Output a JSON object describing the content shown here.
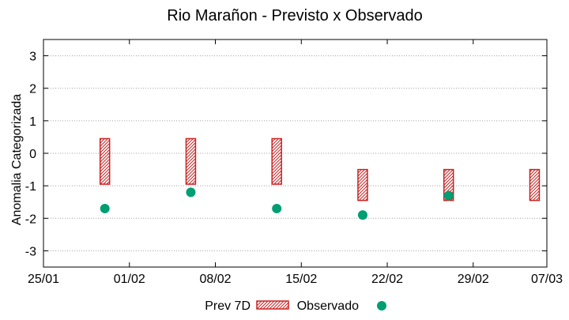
{
  "chart_data": {
    "type": "range-bar-with-points",
    "title": "Rio Marañon - Previsto x Observado",
    "xlabel": "",
    "ylabel": "Anomalia Categorizada",
    "x_axis": {
      "type": "date",
      "range_days": [
        0,
        41
      ],
      "tick_days": [
        0,
        7,
        14,
        21,
        28,
        35,
        41
      ],
      "tick_labels": [
        "25/01",
        "01/02",
        "08/02",
        "15/02",
        "22/02",
        "29/02",
        "07/03"
      ]
    },
    "y_axis": {
      "range": [
        -3.5,
        3.5
      ],
      "ticks": [
        3,
        2,
        1,
        0,
        -1,
        -2,
        -3
      ],
      "tick_labels": [
        "3",
        "2",
        "1",
        "0",
        "-1",
        "-2",
        "-3"
      ],
      "grid": true
    },
    "series": [
      {
        "name": "Prev 7D",
        "kind": "range-bar",
        "color": "#cc2222",
        "points": [
          {
            "x_day": 5,
            "low": -0.95,
            "high": 0.45
          },
          {
            "x_day": 12,
            "low": -0.95,
            "high": 0.45
          },
          {
            "x_day": 19,
            "low": -0.95,
            "high": 0.45
          },
          {
            "x_day": 26,
            "low": -1.45,
            "high": -0.5
          },
          {
            "x_day": 33,
            "low": -1.45,
            "high": -0.5
          },
          {
            "x_day": 40,
            "low": -1.45,
            "high": -0.5
          }
        ]
      },
      {
        "name": "Observado",
        "kind": "scatter",
        "color": "#009e73",
        "points": [
          {
            "x_day": 5,
            "y": -1.7
          },
          {
            "x_day": 12,
            "y": -1.2
          },
          {
            "x_day": 19,
            "y": -1.7
          },
          {
            "x_day": 26,
            "y": -1.9
          },
          {
            "x_day": 33,
            "y": -1.3
          }
        ]
      }
    ],
    "legend": {
      "placement": "bottom-center",
      "entries": [
        "Prev 7D",
        "Observado"
      ]
    }
  }
}
